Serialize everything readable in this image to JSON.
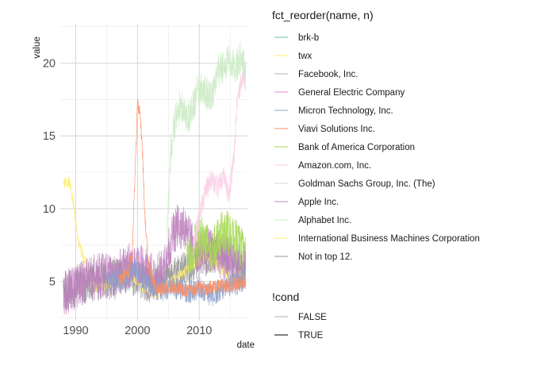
{
  "chart_data": {
    "type": "line",
    "title": "",
    "xlabel": "date",
    "ylabel": "value",
    "xlim": [
      1987.5,
      2017.8
    ],
    "ylim": [
      2.3,
      22.7
    ],
    "x_ticks": [
      "1990",
      "2000",
      "2010"
    ],
    "y_ticks": [
      "5",
      "10",
      "15",
      "20"
    ],
    "grid": true,
    "legend_placement": "right",
    "legend_colour": {
      "title": "fct_reorder(name, n)",
      "entries": [
        {
          "label": "brk-b",
          "color": "#66c2a5"
        },
        {
          "label": "twx",
          "color": "#ffed6f"
        },
        {
          "label": "Facebook, Inc.",
          "color": "#b3b3b3"
        },
        {
          "label": "General Electric Company",
          "color": "#e78ac3"
        },
        {
          "label": "Micron Technology, Inc.",
          "color": "#8da0cb"
        },
        {
          "label": "Viavi Solutions Inc.",
          "color": "#fc8d62"
        },
        {
          "label": "Bank of America Corporation",
          "color": "#a6d854"
        },
        {
          "label": "Amazon.com, Inc.",
          "color": "#fccde5"
        },
        {
          "label": "Goldman Sachs Group, Inc. (The)",
          "color": "#d9d9d9"
        },
        {
          "label": "Apple Inc.",
          "color": "#bc80bd"
        },
        {
          "label": "Alphabet Inc.",
          "color": "#ccebc5"
        },
        {
          "label": "International Business Machines Corporation",
          "color": "#ffed6f"
        },
        {
          "label": "Not in top 12.",
          "color": "#969696"
        }
      ]
    },
    "legend_linetype": {
      "title": "!cond",
      "entries": [
        {
          "label": "FALSE",
          "color": "#b3b3b3"
        },
        {
          "label": "TRUE",
          "color": "#000000"
        }
      ]
    },
    "series": [
      {
        "name": "Not in top 12.",
        "color": "#969696",
        "band": 1.3,
        "x": [
          1988,
          1990,
          1992,
          1994,
          1996,
          1998,
          2000,
          2002,
          2004,
          2006,
          2008,
          2010,
          2012,
          2014,
          2016,
          2017.5
        ],
        "y": [
          4.2,
          4.5,
          4.8,
          5.0,
          5.2,
          5.4,
          5.2,
          4.8,
          5.0,
          5.4,
          5.8,
          6.4,
          6.8,
          7.0,
          6.4,
          6.0
        ]
      },
      {
        "name": "International Business Machines Corporation",
        "color": "#ffed6f",
        "band": 0.4,
        "x": [
          1988,
          1989,
          1989.8,
          1990.5,
          1991.5,
          1993,
          1995,
          1997,
          1999,
          2001,
          2003,
          2005,
          2007,
          2009,
          2011,
          2013,
          2015,
          2017.5
        ],
        "y": [
          11.7,
          11.9,
          9.8,
          7.6,
          6.4,
          4.6,
          4.8,
          5.2,
          5.4,
          4.6,
          4.2,
          4.8,
          5.4,
          6.2,
          6.6,
          6.2,
          5.2,
          5.6
        ]
      },
      {
        "name": "Apple Inc.",
        "color": "#bc80bd",
        "band": 1.6,
        "x": [
          1988,
          1990,
          1992,
          1994,
          1996,
          1998,
          2000,
          2002,
          2004,
          2005,
          2006,
          2007,
          2008,
          2009,
          2010,
          2012,
          2014,
          2016,
          2017.5
        ],
        "y": [
          4.2,
          4.6,
          5.2,
          5.4,
          5.2,
          6.0,
          6.2,
          5.4,
          5.6,
          7.0,
          8.6,
          8.8,
          8.2,
          7.4,
          7.0,
          7.2,
          6.6,
          6.2,
          6.0
        ]
      },
      {
        "name": "Micron Technology, Inc.",
        "color": "#8da0cb",
        "band": 0.8,
        "x": [
          1995,
          1998,
          2000,
          2002,
          2004,
          2006,
          2008,
          2010,
          2012,
          2014,
          2016,
          2017.5
        ],
        "y": [
          5.0,
          5.2,
          5.8,
          4.6,
          4.4,
          4.6,
          4.2,
          4.6,
          4.0,
          4.6,
          4.8,
          5.2
        ]
      },
      {
        "name": "Viavi Solutions Inc.",
        "color": "#fc8d62",
        "band": 0.5,
        "x": [
          1997,
          1998.5,
          1999.2,
          1999.6,
          2000.0,
          2000.4,
          2000.8,
          2001.2,
          2001.8,
          2003,
          2005,
          2008,
          2012,
          2016,
          2017.5
        ],
        "y": [
          5.0,
          5.6,
          7.2,
          12.5,
          17.2,
          16.6,
          14.0,
          9.5,
          6.0,
          4.5,
          4.6,
          4.4,
          4.6,
          4.8,
          5.0
        ]
      },
      {
        "name": "Bank of America Corporation",
        "color": "#a6d854",
        "band": 1.6,
        "x": [
          2008,
          2009,
          2010,
          2011,
          2012,
          2013,
          2014,
          2015,
          2016,
          2017,
          2017.5
        ],
        "y": [
          6.4,
          7.2,
          8.0,
          7.6,
          7.0,
          7.8,
          8.4,
          8.2,
          7.6,
          7.4,
          7.2
        ]
      },
      {
        "name": "Amazon.com, Inc.",
        "color": "#fccde5",
        "band": 0.8,
        "x": [
          2009,
          2010,
          2011,
          2012,
          2013,
          2014,
          2014.8,
          2015.5,
          2016.2,
          2017,
          2017.5
        ],
        "y": [
          7.2,
          9.4,
          11.2,
          12.0,
          11.4,
          12.2,
          11.0,
          13.0,
          17.6,
          18.8,
          19.2
        ]
      },
      {
        "name": "Alphabet Inc.",
        "color": "#ccebc5",
        "band": 1.2,
        "x": [
          2004.8,
          2005.4,
          2006,
          2007,
          2008,
          2009,
          2010,
          2011,
          2012,
          2013,
          2014,
          2015,
          2016,
          2017,
          2017.5
        ],
        "y": [
          8.4,
          14.2,
          15.8,
          17.2,
          16.2,
          17.0,
          18.4,
          18.0,
          17.6,
          19.4,
          19.8,
          20.2,
          19.8,
          20.6,
          19.0
        ]
      }
    ]
  }
}
